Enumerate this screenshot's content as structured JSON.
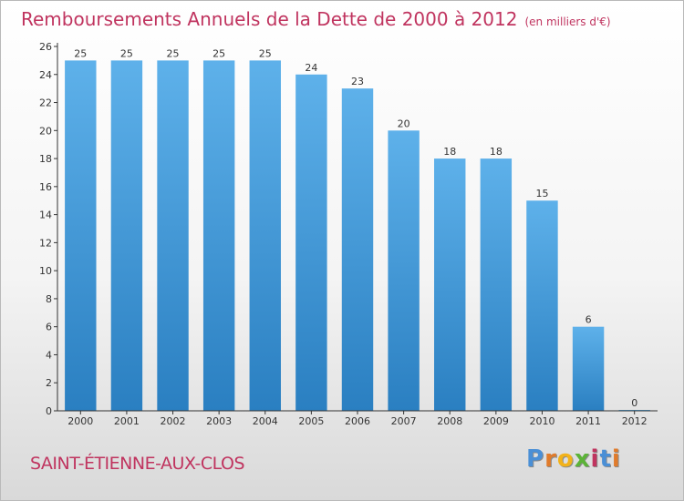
{
  "chart_data": {
    "type": "bar",
    "title": "Remboursements Annuels de la Dette de 2000 à 2012",
    "subtitle": "(en milliers d'€)",
    "categories": [
      "2000",
      "2001",
      "2002",
      "2003",
      "2004",
      "2005",
      "2006",
      "2007",
      "2008",
      "2009",
      "2010",
      "2011",
      "2012"
    ],
    "values": [
      25,
      25,
      25,
      25,
      25,
      24,
      23,
      20,
      18,
      18,
      15,
      6,
      0
    ],
    "ylim": [
      0,
      26
    ],
    "yticks": [
      0,
      2,
      4,
      6,
      8,
      10,
      12,
      14,
      16,
      18,
      20,
      22,
      24,
      26
    ],
    "grid": false,
    "legend": "none",
    "bar_color_top": "#5eb1ea",
    "bar_color_bottom": "#2a7fc1"
  },
  "footer": {
    "town": "SAINT-ÉTIENNE-AUX-CLOS",
    "logo": [
      "P",
      "r",
      "o",
      "x",
      "i",
      "t",
      "i"
    ],
    "logo_colors": [
      "#4a8fd6",
      "#e07b2b",
      "#f2b21a",
      "#5cb338",
      "#c0345f",
      "#4a8fd6",
      "#e07b2b"
    ]
  },
  "colors": {
    "title": "#c0345f",
    "axis": "#333333"
  }
}
